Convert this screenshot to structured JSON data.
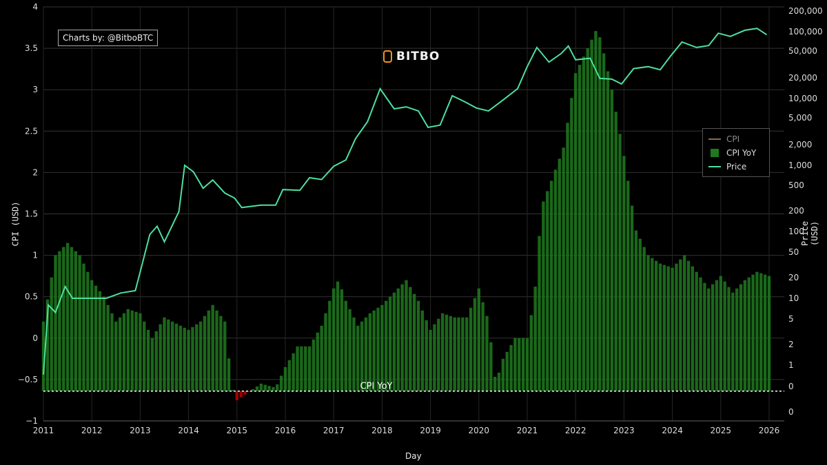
{
  "credit": "Charts by: @BitboBTC",
  "brand": "BITBO",
  "colors": {
    "background": "#000000",
    "cpi": "#8b6b4f",
    "cpi_yoy_positive": "#1e7a1e",
    "cpi_yoy_negative": "#c00000",
    "price": "#4ee0a0",
    "reference": "#ffffff"
  },
  "chart_data": {
    "type": "bar",
    "xlabel": "Day",
    "ylabel_left": "CPI (USD)",
    "ylabel_right": "Price (USD)",
    "y_left_range": [
      -1,
      4
    ],
    "y_left_ticks": [
      "−1",
      "−0.5",
      "0",
      "0.5",
      "1",
      "1.5",
      "2",
      "2.5",
      "3",
      "3.5",
      "4"
    ],
    "y_right_scale": "log",
    "y_right_ticks": [
      "0",
      "0",
      "1",
      "2",
      "5",
      "10",
      "20",
      "50",
      "100",
      "200",
      "500",
      "1,000",
      "2,000",
      "5,000",
      "10,000",
      "20,000",
      "50,000",
      "100,000",
      "200,000"
    ],
    "x_ticks": [
      "2011",
      "2012",
      "2013",
      "2014",
      "2015",
      "2016",
      "2017",
      "2018",
      "2019",
      "2020",
      "2021",
      "2022",
      "2023",
      "2024",
      "2025",
      "2026"
    ],
    "reference_line": {
      "label": "CPI YoY",
      "value": -0.64
    },
    "legend": [
      "CPI",
      "CPI YoY",
      "Price"
    ],
    "legend_position": "right",
    "cpi_yoy_points": [
      [
        2011.0,
        0.2
      ],
      [
        2011.25,
        1.0
      ],
      [
        2011.5,
        1.15
      ],
      [
        2011.75,
        1.0
      ],
      [
        2012.0,
        0.7
      ],
      [
        2012.25,
        0.5
      ],
      [
        2012.5,
        0.2
      ],
      [
        2012.75,
        0.35
      ],
      [
        2013.0,
        0.3
      ],
      [
        2013.25,
        0.0
      ],
      [
        2013.5,
        0.25
      ],
      [
        2014.0,
        0.1
      ],
      [
        2014.25,
        0.2
      ],
      [
        2014.5,
        0.4
      ],
      [
        2014.75,
        0.2
      ],
      [
        2014.9,
        -0.6
      ],
      [
        2015.0,
        -0.75
      ],
      [
        2015.25,
        -0.65
      ],
      [
        2015.5,
        -0.55
      ],
      [
        2015.8,
        -0.6
      ],
      [
        2016.0,
        -0.35
      ],
      [
        2016.25,
        -0.1
      ],
      [
        2016.5,
        -0.1
      ],
      [
        2016.75,
        0.15
      ],
      [
        2017.0,
        0.6
      ],
      [
        2017.1,
        0.7
      ],
      [
        2017.25,
        0.45
      ],
      [
        2017.5,
        0.15
      ],
      [
        2017.75,
        0.3
      ],
      [
        2018.0,
        0.4
      ],
      [
        2018.25,
        0.55
      ],
      [
        2018.5,
        0.7
      ],
      [
        2018.75,
        0.45
      ],
      [
        2019.0,
        0.1
      ],
      [
        2019.25,
        0.3
      ],
      [
        2019.5,
        0.25
      ],
      [
        2019.75,
        0.25
      ],
      [
        2020.0,
        0.6
      ],
      [
        2020.2,
        0.2
      ],
      [
        2020.35,
        -0.55
      ],
      [
        2020.5,
        -0.25
      ],
      [
        2020.75,
        0.0
      ],
      [
        2021.0,
        0.0
      ],
      [
        2021.15,
        0.5
      ],
      [
        2021.3,
        1.6
      ],
      [
        2021.5,
        1.9
      ],
      [
        2021.75,
        2.3
      ],
      [
        2022.0,
        3.2
      ],
      [
        2022.25,
        3.5
      ],
      [
        2022.45,
        3.75
      ],
      [
        2022.6,
        3.4
      ],
      [
        2022.75,
        3.0
      ],
      [
        2023.0,
        2.2
      ],
      [
        2023.25,
        1.3
      ],
      [
        2023.5,
        1.0
      ],
      [
        2023.75,
        0.9
      ],
      [
        2024.0,
        0.85
      ],
      [
        2024.25,
        1.0
      ],
      [
        2024.5,
        0.8
      ],
      [
        2024.75,
        0.6
      ],
      [
        2025.0,
        0.75
      ],
      [
        2025.25,
        0.55
      ],
      [
        2025.5,
        0.7
      ],
      [
        2025.75,
        0.8
      ],
      [
        2026.0,
        0.75
      ]
    ],
    "price_points": [
      [
        2011.0,
        0.3
      ],
      [
        2011.1,
        0.9
      ],
      [
        2011.25,
        0.8
      ],
      [
        2011.45,
        15
      ],
      [
        2011.6,
        10
      ],
      [
        2011.85,
        3
      ],
      [
        2012.0,
        5
      ],
      [
        2012.3,
        5
      ],
      [
        2012.6,
        12
      ],
      [
        2012.9,
        13
      ],
      [
        2013.2,
        90
      ],
      [
        2013.35,
        120
      ],
      [
        2013.5,
        70
      ],
      [
        2013.8,
        200
      ],
      [
        2013.92,
        1000
      ],
      [
        2014.1,
        800
      ],
      [
        2014.3,
        450
      ],
      [
        2014.5,
        600
      ],
      [
        2014.75,
        380
      ],
      [
        2014.95,
        320
      ],
      [
        2015.1,
        230
      ],
      [
        2015.5,
        250
      ],
      [
        2015.8,
        250
      ],
      [
        2015.95,
        430
      ],
      [
        2016.3,
        420
      ],
      [
        2016.5,
        650
      ],
      [
        2016.75,
        610
      ],
      [
        2017.0,
        970
      ],
      [
        2017.25,
        1200
      ],
      [
        2017.45,
        2500
      ],
      [
        2017.7,
        4500
      ],
      [
        2017.96,
        14000
      ],
      [
        2018.1,
        10000
      ],
      [
        2018.25,
        7000
      ],
      [
        2018.5,
        7500
      ],
      [
        2018.75,
        6500
      ],
      [
        2018.95,
        3700
      ],
      [
        2019.2,
        4000
      ],
      [
        2019.45,
        11000
      ],
      [
        2019.7,
        9000
      ],
      [
        2019.95,
        7200
      ],
      [
        2020.2,
        6500
      ],
      [
        2020.5,
        9500
      ],
      [
        2020.8,
        14000
      ],
      [
        2021.0,
        30000
      ],
      [
        2021.2,
        58000
      ],
      [
        2021.45,
        35000
      ],
      [
        2021.7,
        47000
      ],
      [
        2021.85,
        61000
      ],
      [
        2022.0,
        38000
      ],
      [
        2022.3,
        40000
      ],
      [
        2022.5,
        20000
      ],
      [
        2022.75,
        19500
      ],
      [
        2022.95,
        16500
      ],
      [
        2023.2,
        28000
      ],
      [
        2023.5,
        30000
      ],
      [
        2023.75,
        27000
      ],
      [
        2023.95,
        42000
      ],
      [
        2024.2,
        70000
      ],
      [
        2024.5,
        58000
      ],
      [
        2024.75,
        62000
      ],
      [
        2024.95,
        95000
      ],
      [
        2025.2,
        85000
      ],
      [
        2025.5,
        105000
      ],
      [
        2025.75,
        112000
      ],
      [
        2025.95,
        90000
      ]
    ]
  }
}
